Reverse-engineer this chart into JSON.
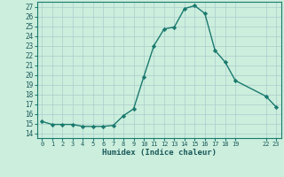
{
  "x": [
    0,
    1,
    2,
    3,
    4,
    5,
    6,
    7,
    8,
    9,
    10,
    11,
    12,
    13,
    14,
    15,
    16,
    17,
    18,
    19,
    22,
    23
  ],
  "y": [
    15.2,
    14.9,
    14.9,
    14.9,
    14.7,
    14.7,
    14.7,
    14.8,
    15.8,
    16.5,
    19.8,
    23.0,
    24.7,
    24.9,
    26.8,
    27.1,
    26.3,
    22.5,
    21.3,
    19.4,
    17.8,
    16.7
  ],
  "xticks": [
    0,
    1,
    2,
    3,
    4,
    5,
    6,
    7,
    8,
    9,
    10,
    11,
    12,
    13,
    14,
    15,
    16,
    17,
    18,
    19,
    22,
    23
  ],
  "xtick_labels": [
    "0",
    "1",
    "2",
    "3",
    "4",
    "5",
    "6",
    "7",
    "8",
    "9",
    "10",
    "11",
    "12",
    "13",
    "14",
    "15",
    "16",
    "17",
    "18",
    "19",
    "22",
    "23"
  ],
  "yticks": [
    14,
    15,
    16,
    17,
    18,
    19,
    20,
    21,
    22,
    23,
    24,
    25,
    26,
    27
  ],
  "xlabel": "Humidex (Indice chaleur)",
  "ylim": [
    13.5,
    27.5
  ],
  "xlim": [
    -0.5,
    23.5
  ],
  "line_color": "#1a7a6e",
  "marker": "D",
  "marker_size": 2.2,
  "bg_color": "#cceedd",
  "grid_color": "#aacccc",
  "tick_label_color": "#1a5a5a",
  "xlabel_color": "#1a5a5a"
}
